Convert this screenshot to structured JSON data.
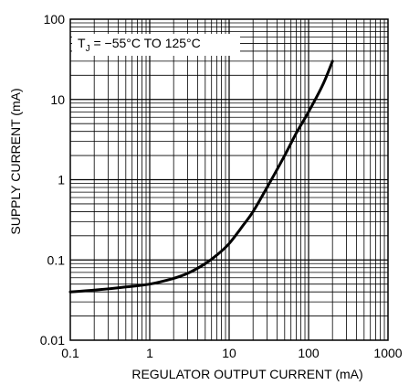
{
  "chart_data": {
    "type": "line",
    "xlabel": "REGULATOR OUTPUT CURRENT (mA)",
    "ylabel": "SUPPLY CURRENT (mA)",
    "x_scale": "log",
    "y_scale": "log",
    "xlim": [
      0.1,
      1000
    ],
    "ylim": [
      0.01,
      100
    ],
    "grid": true,
    "x_tick_labels": [
      "0.1",
      "1",
      "10",
      "100",
      "1000"
    ],
    "y_tick_labels": [
      "0.01",
      "0.1",
      "1",
      "10",
      "100"
    ],
    "x_tick_values": [
      0.1,
      1,
      10,
      100,
      1000
    ],
    "y_tick_values": [
      0.01,
      0.1,
      1,
      10,
      100
    ],
    "annotation": {
      "prefix": "T",
      "subscript": "J",
      "suffix": " = −55°C TO 125°C"
    },
    "series": [
      {
        "x": [
          0.1,
          0.2,
          0.5,
          1,
          2,
          3,
          5,
          7,
          10,
          15,
          20,
          30,
          50,
          70,
          100,
          150,
          200
        ],
        "y": [
          0.04,
          0.042,
          0.046,
          0.05,
          0.059,
          0.068,
          0.09,
          0.115,
          0.16,
          0.27,
          0.4,
          0.8,
          2.0,
          3.8,
          7.0,
          15.0,
          30.0
        ]
      }
    ]
  }
}
